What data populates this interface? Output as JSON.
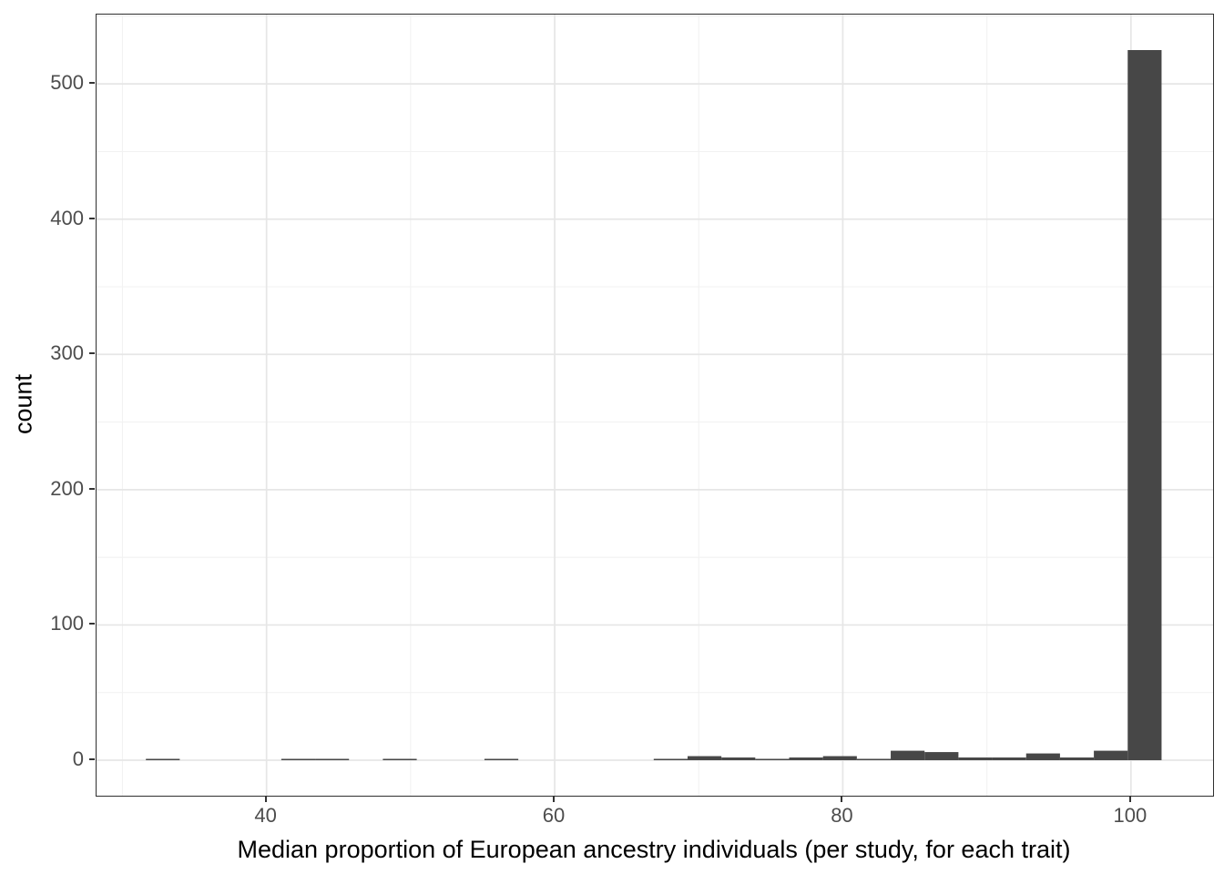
{
  "figure": {
    "background": "#ffffff"
  },
  "chart_data": {
    "type": "bar",
    "subtype": "histogram",
    "title": "",
    "xlabel": "Median proportion of European ancestry individuals (per study, for each trait)",
    "ylabel": "count",
    "bin_width": 2.35,
    "bin_centers": [
      32.8,
      35.15,
      37.5,
      39.85,
      42.2,
      44.55,
      46.9,
      49.25,
      51.6,
      53.95,
      56.3,
      58.65,
      61.0,
      63.35,
      65.7,
      68.05,
      70.4,
      72.75,
      75.1,
      77.45,
      79.8,
      82.15,
      84.5,
      86.85,
      89.2,
      91.55,
      93.9,
      96.25,
      98.6,
      100.95
    ],
    "counts": [
      1,
      0,
      0,
      0,
      1,
      1,
      0,
      1,
      0,
      0,
      1,
      0,
      0,
      0,
      0,
      1,
      3,
      2,
      1,
      2,
      3,
      1,
      7,
      6,
      2,
      2,
      5,
      2,
      7,
      525
    ],
    "x_ticks": [
      40,
      60,
      80,
      100
    ],
    "x_minor_ticks": [
      30,
      50,
      70,
      90
    ],
    "y_ticks": [
      0,
      100,
      200,
      300,
      400,
      500
    ],
    "y_minor_ticks": [
      50,
      150,
      250,
      350,
      450,
      550
    ],
    "x_domain": [
      28.2,
      105.7
    ],
    "y_domain": [
      -26.25,
      551.25
    ],
    "ylim": [
      0,
      525
    ],
    "grid": true,
    "legend_position": "none",
    "bar_color": "#474747",
    "grid_major_color": "#e6e6e6",
    "grid_minor_color": "#f2f2f2",
    "panel_border_color": "#2f2f2f",
    "tick_color": "#333333",
    "axis_text_color": "#4d4d4d",
    "axis_title_color": "#000000"
  }
}
